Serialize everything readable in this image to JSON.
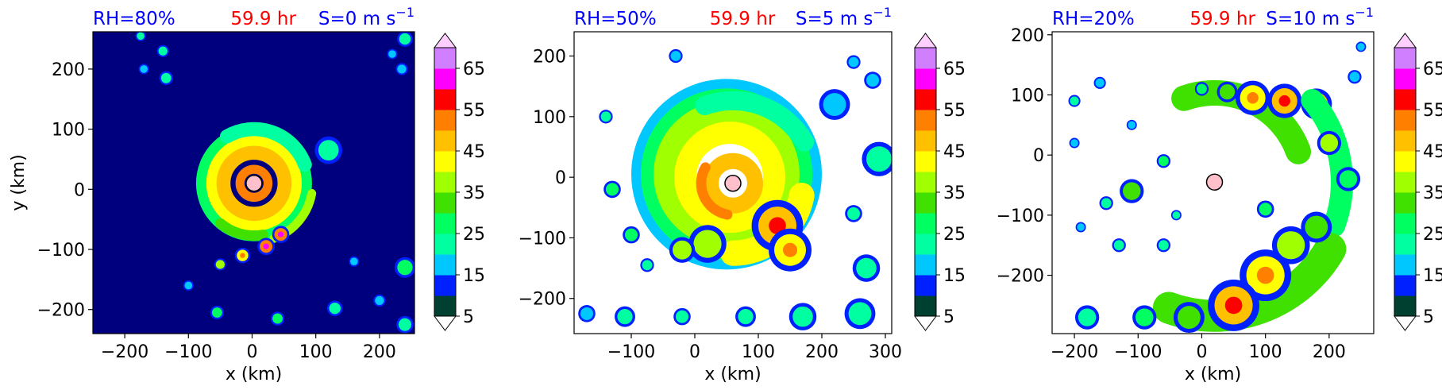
{
  "chart_data": [
    {
      "type": "heatmap",
      "panel": 1,
      "title_left": "RH=80%",
      "title_center": "59.9 hr",
      "title_right_prefix": "S=0 m s",
      "title_right_exp": "−1",
      "xlabel": "x (km)",
      "ylabel": "y (km)",
      "xlim": [
        -250,
        255
      ],
      "ylim": [
        -240,
        262
      ],
      "xticks": [
        -200,
        -100,
        0,
        100,
        200
      ],
      "yticks": [
        -200,
        -100,
        0,
        100,
        200
      ],
      "background": "#00007f",
      "center": [
        3,
        10
      ],
      "features": [
        {
          "type": "ring",
          "cx": 3,
          "cy": 10,
          "r": 68,
          "w": 46,
          "level": 25
        },
        {
          "type": "ring",
          "cx": 3,
          "cy": 10,
          "r": 58,
          "w": 34,
          "level": 40
        },
        {
          "type": "ring",
          "cx": 3,
          "cy": 10,
          "r": 48,
          "w": 22,
          "level": 45
        },
        {
          "type": "ring",
          "cx": 3,
          "cy": 10,
          "r": 22,
          "w": 14,
          "level": 50
        },
        {
          "type": "arc",
          "cx": 3,
          "cy": 10,
          "r": 85,
          "a0": 20,
          "a1": 120,
          "w": 22,
          "level": 20
        },
        {
          "type": "arc",
          "cx": 3,
          "cy": 10,
          "r": 92,
          "a0": -70,
          "a1": -10,
          "w": 14,
          "level": 35
        },
        {
          "type": "arc",
          "cx": 3,
          "cy": 10,
          "r": 82,
          "a0": -130,
          "a1": -80,
          "w": 16,
          "level": 30
        },
        {
          "type": "blob",
          "x": 120,
          "y": 65,
          "r": 16,
          "level": 20
        },
        {
          "type": "blob",
          "x": 45,
          "y": -75,
          "r": 10,
          "level": 50
        },
        {
          "type": "blob",
          "x": 22,
          "y": -95,
          "r": 10,
          "level": 50
        },
        {
          "type": "blob",
          "x": -15,
          "y": -110,
          "r": 9,
          "level": 40
        },
        {
          "type": "blob",
          "x": -50,
          "y": -125,
          "r": 7,
          "level": 35
        },
        {
          "type": "blob",
          "x": -140,
          "y": 230,
          "r": 7,
          "level": 20
        },
        {
          "type": "blob",
          "x": -175,
          "y": 255,
          "r": 6,
          "level": 20
        },
        {
          "type": "blob",
          "x": -170,
          "y": 200,
          "r": 6,
          "level": 15
        },
        {
          "type": "blob",
          "x": -135,
          "y": 185,
          "r": 8,
          "level": 20
        },
        {
          "type": "blob",
          "x": 240,
          "y": 250,
          "r": 9,
          "level": 20
        },
        {
          "type": "blob",
          "x": 220,
          "y": 225,
          "r": 6,
          "level": 15
        },
        {
          "type": "blob",
          "x": 235,
          "y": 200,
          "r": 7,
          "level": 15
        },
        {
          "type": "blob",
          "x": 240,
          "y": -130,
          "r": 12,
          "level": 25
        },
        {
          "type": "blob",
          "x": 240,
          "y": -225,
          "r": 10,
          "level": 20
        },
        {
          "type": "blob",
          "x": 40,
          "y": -215,
          "r": 8,
          "level": 25
        },
        {
          "type": "blob",
          "x": -55,
          "y": -205,
          "r": 8,
          "level": 25
        },
        {
          "type": "blob",
          "x": 130,
          "y": -198,
          "r": 9,
          "level": 20
        },
        {
          "type": "blob",
          "x": 200,
          "y": -185,
          "r": 7,
          "level": 15
        },
        {
          "type": "blob",
          "x": 160,
          "y": -120,
          "r": 6,
          "level": 15
        },
        {
          "type": "blob",
          "x": -100,
          "y": -160,
          "r": 6,
          "level": 15
        }
      ]
    },
    {
      "type": "heatmap",
      "panel": 2,
      "title_left": "RH=50%",
      "title_center": "59.9 hr",
      "title_right_prefix": "S=5 m s",
      "title_right_exp": "−1",
      "xlabel": "x (km)",
      "ylabel": "",
      "xlim": [
        -190,
        310
      ],
      "ylim": [
        -258,
        240
      ],
      "xticks": [
        -100,
        0,
        100,
        200,
        300
      ],
      "yticks": [
        -200,
        -100,
        0,
        100,
        200
      ],
      "background": "#ffffff",
      "center": [
        60,
        -10
      ],
      "features": [
        {
          "type": "ring",
          "cx": 50,
          "cy": 5,
          "r": 120,
          "w": 60,
          "level": 15
        },
        {
          "type": "ring",
          "cx": 50,
          "cy": 5,
          "r": 110,
          "w": 50,
          "level": 25
        },
        {
          "type": "ring",
          "cx": 50,
          "cy": 5,
          "r": 95,
          "w": 40,
          "level": 35
        },
        {
          "type": "ring",
          "cx": 55,
          "cy": 0,
          "r": 70,
          "w": 35,
          "level": 40
        },
        {
          "type": "ring",
          "cx": 60,
          "cy": -10,
          "r": 35,
          "w": 25,
          "level": 45
        },
        {
          "type": "arc",
          "cx": 60,
          "cy": -10,
          "r": 50,
          "a0": 150,
          "a1": 260,
          "w": 16,
          "level": 50
        },
        {
          "type": "arc",
          "cx": 60,
          "cy": -10,
          "r": 110,
          "a0": -90,
          "a1": -10,
          "w": 40,
          "level": 40
        },
        {
          "type": "arc",
          "cx": 60,
          "cy": -10,
          "r": 130,
          "a0": 30,
          "a1": 110,
          "w": 30,
          "level": 20
        },
        {
          "type": "blob",
          "x": 130,
          "y": -80,
          "r": 30,
          "level": 45
        },
        {
          "type": "blob",
          "x": 150,
          "y": -120,
          "r": 25,
          "level": 40
        },
        {
          "type": "blob",
          "x": 20,
          "y": -110,
          "r": 22,
          "level": 35
        },
        {
          "type": "blob",
          "x": -20,
          "y": -120,
          "r": 15,
          "level": 35
        },
        {
          "type": "blob",
          "x": 220,
          "y": 120,
          "r": 18,
          "level": 15
        },
        {
          "type": "blob",
          "x": -130,
          "y": -20,
          "r": 10,
          "level": 25
        },
        {
          "type": "blob",
          "x": -140,
          "y": 100,
          "r": 8,
          "level": 20
        },
        {
          "type": "blob",
          "x": -100,
          "y": -95,
          "r": 10,
          "level": 25
        },
        {
          "type": "blob",
          "x": -75,
          "y": -145,
          "r": 8,
          "level": 20
        },
        {
          "type": "blob",
          "x": 270,
          "y": -150,
          "r": 16,
          "level": 20
        },
        {
          "type": "blob",
          "x": 260,
          "y": -225,
          "r": 18,
          "level": 20
        },
        {
          "type": "blob",
          "x": 170,
          "y": -230,
          "r": 16,
          "level": 20
        },
        {
          "type": "blob",
          "x": 80,
          "y": -230,
          "r": 12,
          "level": 20
        },
        {
          "type": "blob",
          "x": -20,
          "y": -230,
          "r": 10,
          "level": 20
        },
        {
          "type": "blob",
          "x": -110,
          "y": -230,
          "r": 12,
          "level": 20
        },
        {
          "type": "blob",
          "x": -170,
          "y": -225,
          "r": 10,
          "level": 15
        },
        {
          "type": "blob",
          "x": 290,
          "y": 30,
          "r": 20,
          "level": 20
        },
        {
          "type": "blob",
          "x": 250,
          "y": -60,
          "r": 10,
          "level": 20
        },
        {
          "type": "blob",
          "x": 280,
          "y": 160,
          "r": 10,
          "level": 15
        },
        {
          "type": "blob",
          "x": -30,
          "y": 200,
          "r": 8,
          "level": 15
        },
        {
          "type": "blob",
          "x": 250,
          "y": 190,
          "r": 8,
          "level": 15
        }
      ]
    },
    {
      "type": "heatmap",
      "panel": 3,
      "title_left": "RH=20%",
      "title_center": "59.9 hr",
      "title_right_prefix": "S=10 m s",
      "title_right_exp": "−1",
      "xlabel": "x (km)",
      "ylabel": "",
      "xlim": [
        -235,
        270
      ],
      "ylim": [
        -297,
        205
      ],
      "xticks": [
        -200,
        -100,
        0,
        100,
        200
      ],
      "yticks": [
        -200,
        -100,
        0,
        100,
        200
      ],
      "background": "#ffffff",
      "center": [
        20,
        -45
      ],
      "features": [
        {
          "type": "arc",
          "cx": 20,
          "cy": -45,
          "r": 140,
          "a0": 20,
          "a1": 110,
          "w": 40,
          "level": 30
        },
        {
          "type": "blob",
          "x": 80,
          "y": 95,
          "r": 20,
          "level": 40
        },
        {
          "type": "blob",
          "x": 130,
          "y": 90,
          "r": 20,
          "level": 45
        },
        {
          "type": "blob",
          "x": 180,
          "y": 85,
          "r": 18,
          "level": 45
        },
        {
          "type": "blob",
          "x": 40,
          "y": 105,
          "r": 12,
          "level": 30
        },
        {
          "type": "blob",
          "x": 0,
          "y": 110,
          "r": 8,
          "level": 25
        },
        {
          "type": "arc",
          "cx": 20,
          "cy": -45,
          "r": 200,
          "a0": -20,
          "a1": 40,
          "w": 35,
          "level": 25
        },
        {
          "type": "blob",
          "x": 200,
          "y": 20,
          "r": 14,
          "level": 35
        },
        {
          "type": "blob",
          "x": 230,
          "y": -40,
          "r": 14,
          "level": 25
        },
        {
          "type": "arc",
          "cx": 20,
          "cy": -45,
          "r": 210,
          "a0": -110,
          "a1": -30,
          "w": 50,
          "level": 30
        },
        {
          "type": "blob",
          "x": 100,
          "y": -200,
          "r": 30,
          "level": 40
        },
        {
          "type": "blob",
          "x": 50,
          "y": -250,
          "r": 30,
          "level": 45
        },
        {
          "type": "blob",
          "x": 140,
          "y": -150,
          "r": 22,
          "level": 35
        },
        {
          "type": "blob",
          "x": 180,
          "y": -120,
          "r": 18,
          "level": 30
        },
        {
          "type": "blob",
          "x": -20,
          "y": -270,
          "r": 18,
          "level": 30
        },
        {
          "type": "blob",
          "x": -90,
          "y": -270,
          "r": 14,
          "level": 25
        },
        {
          "type": "blob",
          "x": -180,
          "y": -270,
          "r": 14,
          "level": 20
        },
        {
          "type": "blob",
          "x": -110,
          "y": -60,
          "r": 14,
          "level": 30
        },
        {
          "type": "blob",
          "x": -150,
          "y": -80,
          "r": 8,
          "level": 20
        },
        {
          "type": "blob",
          "x": -60,
          "y": -150,
          "r": 8,
          "level": 20
        },
        {
          "type": "blob",
          "x": -130,
          "y": -150,
          "r": 8,
          "level": 20
        },
        {
          "type": "blob",
          "x": -190,
          "y": -120,
          "r": 6,
          "level": 15
        },
        {
          "type": "blob",
          "x": -200,
          "y": 20,
          "r": 6,
          "level": 15
        },
        {
          "type": "blob",
          "x": -200,
          "y": 90,
          "r": 7,
          "level": 20
        },
        {
          "type": "blob",
          "x": -160,
          "y": 120,
          "r": 7,
          "level": 15
        },
        {
          "type": "blob",
          "x": -110,
          "y": 50,
          "r": 6,
          "level": 15
        },
        {
          "type": "blob",
          "x": -60,
          "y": -10,
          "r": 8,
          "level": 25
        },
        {
          "type": "blob",
          "x": -40,
          "y": -100,
          "r": 6,
          "level": 20
        },
        {
          "type": "blob",
          "x": 240,
          "y": 130,
          "r": 8,
          "level": 15
        },
        {
          "type": "blob",
          "x": 250,
          "y": 180,
          "r": 6,
          "level": 15
        },
        {
          "type": "blob",
          "x": 100,
          "y": -90,
          "r": 10,
          "level": 25
        }
      ]
    }
  ],
  "colorbar": {
    "levels": [
      5,
      10,
      15,
      20,
      25,
      30,
      35,
      40,
      45,
      50,
      55,
      60,
      65,
      70
    ],
    "colors": [
      "#004030",
      "#0020ff",
      "#00c8ff",
      "#00ffa0",
      "#00ff60",
      "#40e000",
      "#a0ff00",
      "#ffff00",
      "#ffc000",
      "#ff8000",
      "#ff0000",
      "#ff00ff",
      "#d080ff",
      "#ffd0ff"
    ],
    "tick_labels": [
      "5",
      "15",
      "25",
      "35",
      "45",
      "55",
      "65"
    ],
    "extend": "both"
  },
  "colors": {
    "title_left": "#0000ff",
    "title_center": "#ff0000",
    "title_right": "#0000ff",
    "center_marker": "#ffc0cb"
  }
}
